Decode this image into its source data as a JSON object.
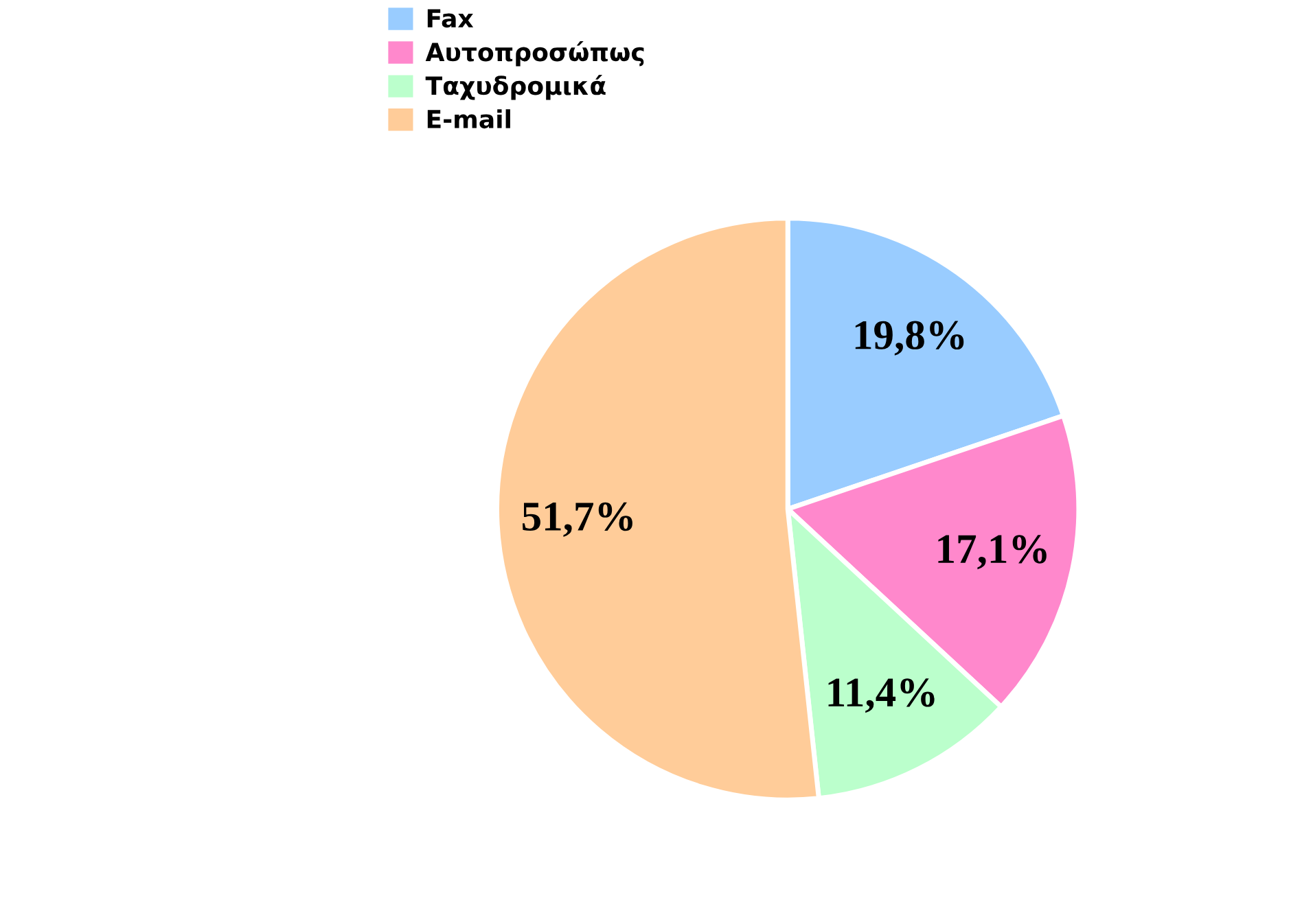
{
  "chart_data": {
    "type": "pie",
    "categories": [
      "Fax",
      "Αυτοπροσώπως",
      "Ταχυδρομικά",
      "E-mail"
    ],
    "values": [
      19.8,
      17.1,
      11.4,
      51.7
    ],
    "colors": [
      "#99ccff",
      "#ff88cc",
      "#bbffcc",
      "#ffcc99"
    ],
    "value_labels": [
      "19,8%",
      "17,1%",
      "11,4%",
      "51,7%"
    ],
    "legend": "top left"
  }
}
